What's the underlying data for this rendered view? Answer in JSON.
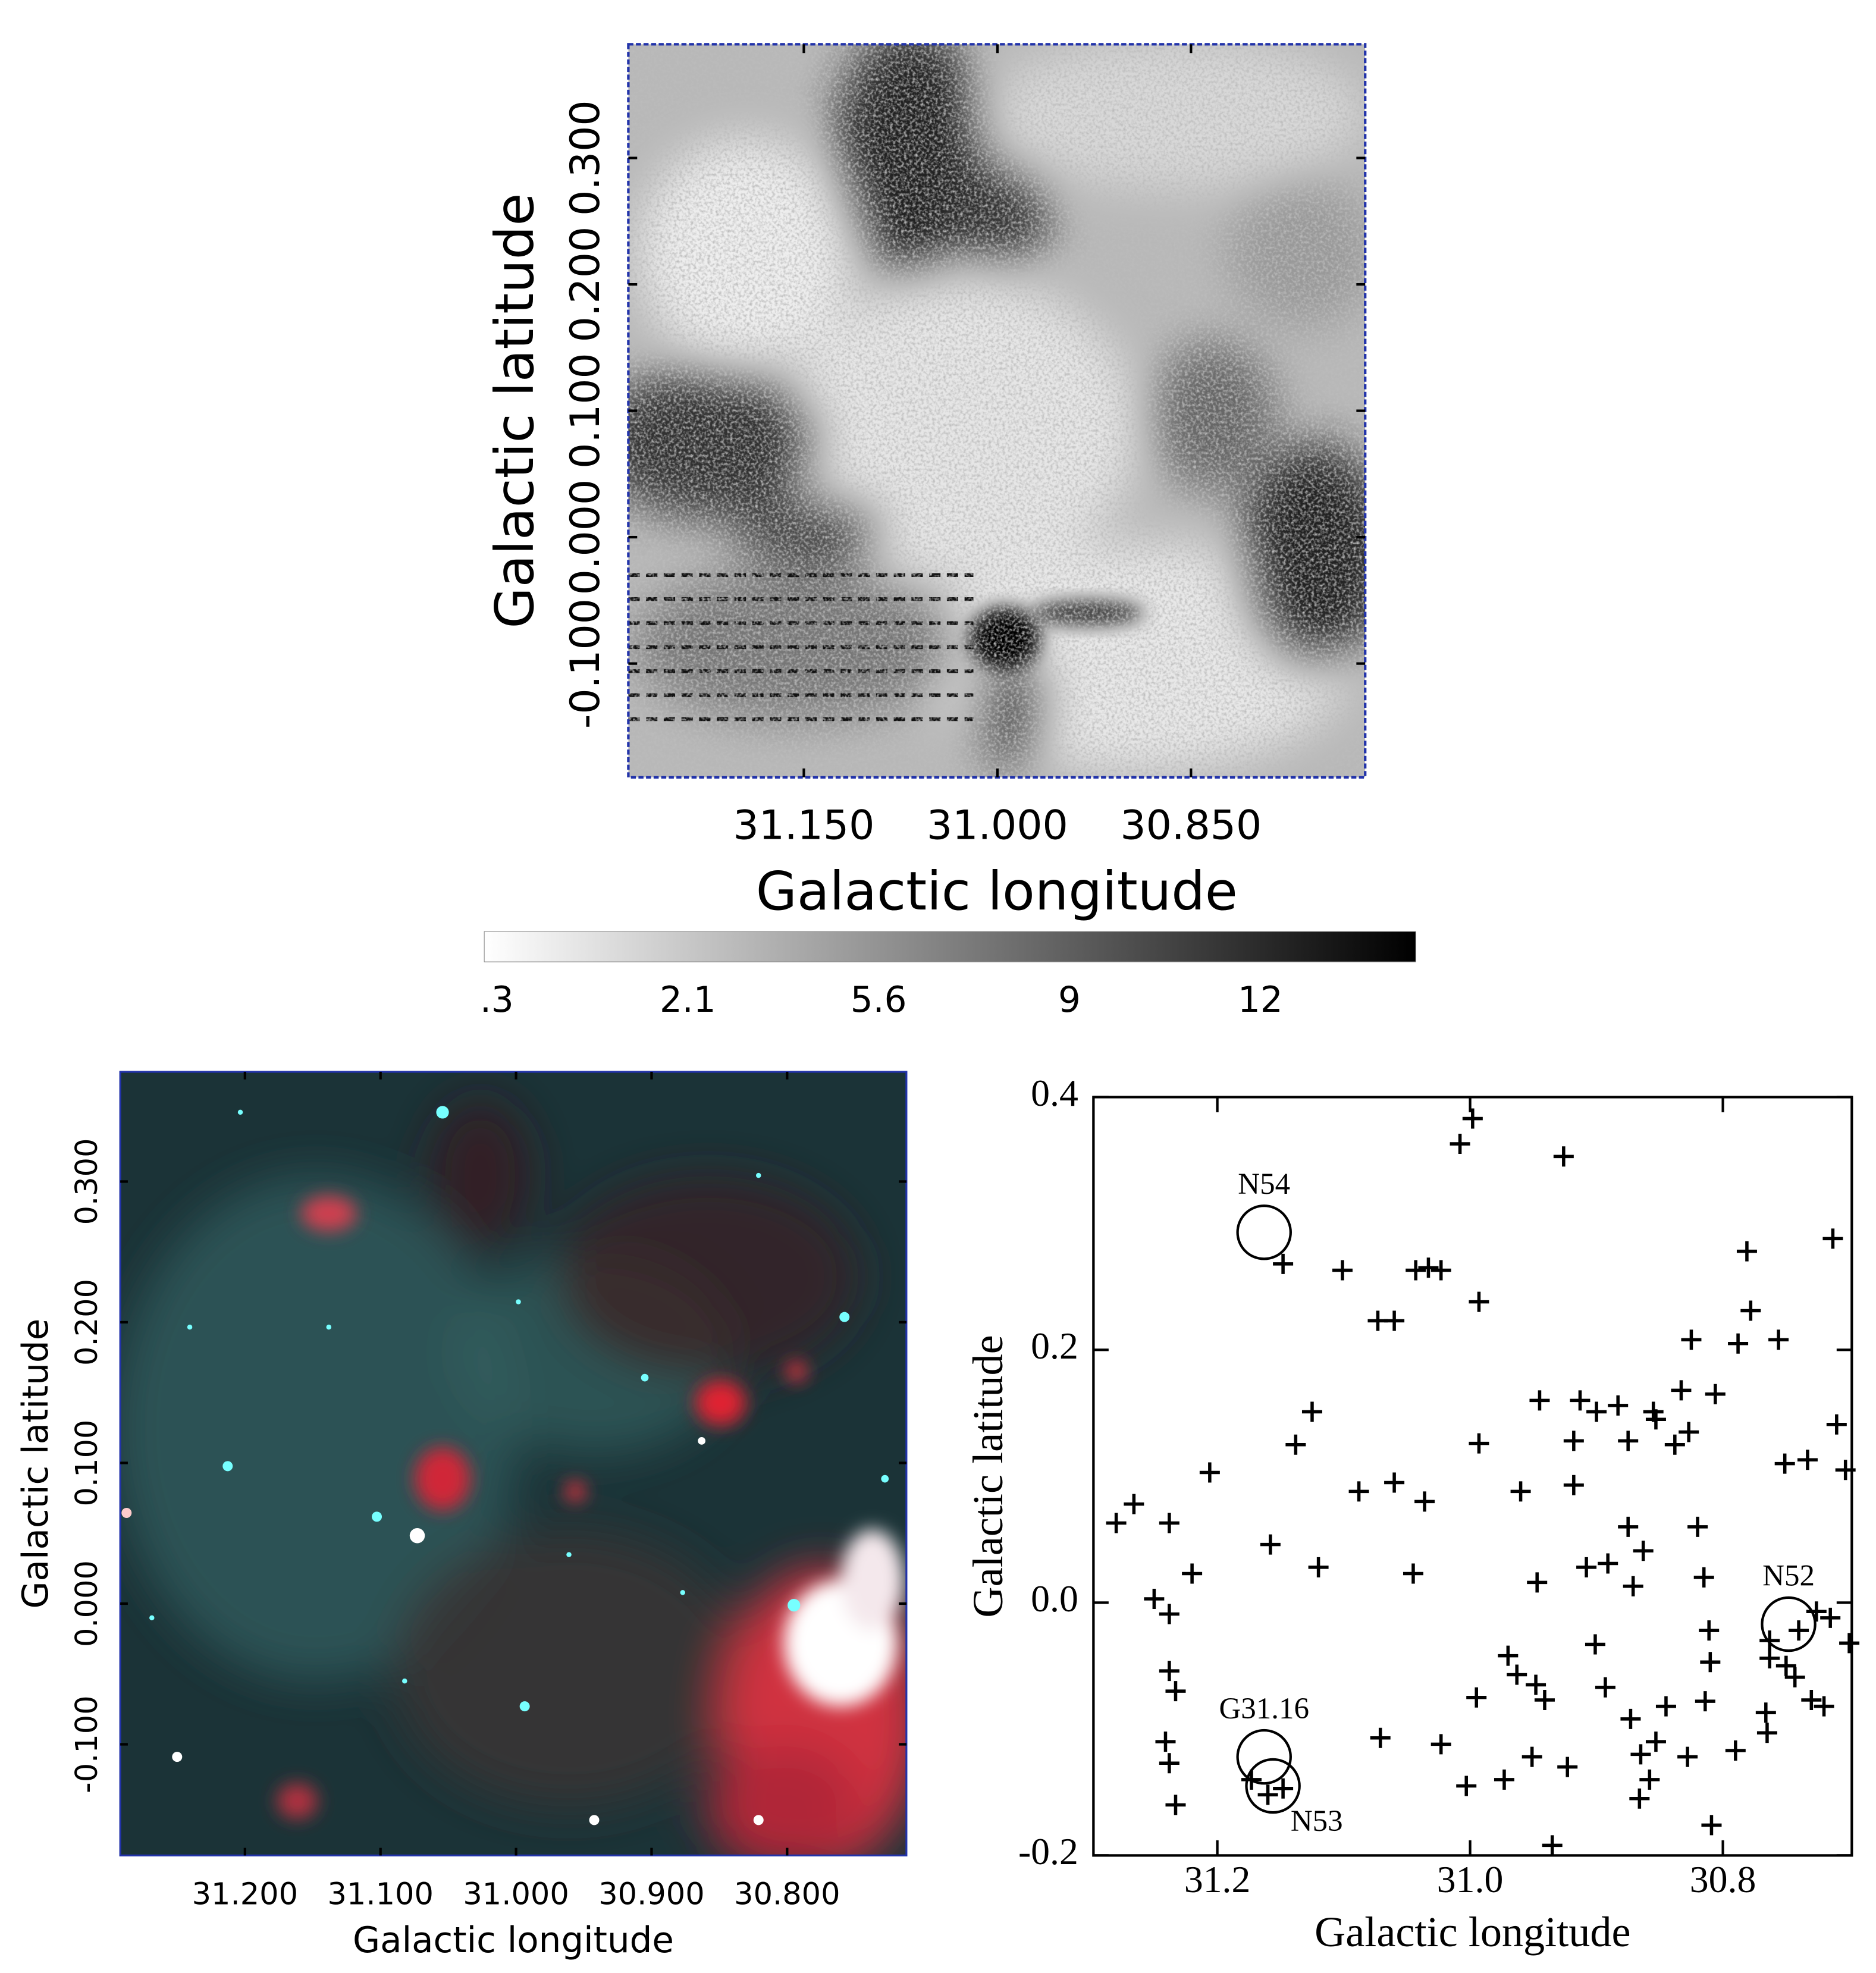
{
  "chart_data": [
    {
      "type": "image",
      "x_label": "Galactic longitude",
      "y_label": "Galactic latitude",
      "xlim": [
        31.286,
        30.715
      ],
      "ylim": [
        -0.19,
        0.39
      ],
      "xticks": [
        {
          "value": 31.15,
          "label": "31.150"
        },
        {
          "value": 31.0,
          "label": "31.000"
        },
        {
          "value": 30.85,
          "label": "30.850"
        }
      ],
      "yticks": [
        {
          "value": -0.1,
          "label": "-0.100"
        },
        {
          "value": 0.0,
          "label": "0.000"
        },
        {
          "value": 0.1,
          "label": "0.100"
        },
        {
          "value": 0.2,
          "label": "0.200"
        },
        {
          "value": 0.3,
          "label": "0.300"
        }
      ],
      "colormap": [
        "#ffffff",
        "#000000"
      ],
      "colorbar_ticks": [
        {
          "value": 0.3,
          "label": ".3"
        },
        2.1,
        5.6,
        9,
        12
      ]
    },
    {
      "type": "image",
      "x_label": "Galactic longitude",
      "y_label": "Galactic latitude",
      "xlim": [
        31.292,
        30.712
      ],
      "ylim": [
        -0.179,
        0.378
      ],
      "xticks": [
        {
          "value": 31.2,
          "label": "31.200"
        },
        {
          "value": 31.1,
          "label": "31.100"
        },
        {
          "value": 31.0,
          "label": "31.000"
        },
        {
          "value": 30.9,
          "label": "30.900"
        },
        {
          "value": 30.8,
          "label": "30.800"
        }
      ],
      "yticks": [
        {
          "value": -0.1,
          "label": "-0.100"
        },
        {
          "value": 0.0,
          "label": "0.000"
        },
        {
          "value": 0.1,
          "label": "0.100"
        },
        {
          "value": 0.2,
          "label": "0.200"
        },
        {
          "value": 0.3,
          "label": "0.300"
        }
      ]
    },
    {
      "type": "scatter",
      "x_label": "Galactic longitude",
      "y_label": "Galactic latitude",
      "xlim": [
        31.298,
        30.698
      ],
      "ylim": [
        -0.2,
        0.4
      ],
      "xticks": [
        {
          "value": 31.2,
          "label": "31.2"
        },
        {
          "value": 31.0,
          "label": "31.0"
        },
        {
          "value": 30.8,
          "label": "30.8"
        }
      ],
      "yticks": [
        {
          "value": -0.2,
          "label": "-0.2"
        },
        {
          "value": 0.0,
          "label": "0.0"
        },
        {
          "value": 0.2,
          "label": "0.2"
        },
        {
          "value": 0.4,
          "label": "0.4"
        }
      ],
      "marker": "+",
      "color": "#000000",
      "x": [
        30.998,
        31.008,
        30.926,
        30.713,
        30.781,
        31.148,
        31.101,
        31.043,
        31.033,
        31.023,
        30.993,
        30.778,
        31.073,
        31.06,
        30.825,
        30.788,
        30.756,
        30.833,
        30.806,
        30.945,
        30.913,
        30.9,
        30.883,
        30.855,
        30.853,
        31.125,
        30.71,
        30.827,
        30.918,
        30.875,
        31.138,
        30.993,
        30.838,
        30.733,
        30.751,
        30.703,
        31.206,
        30.918,
        31.06,
        31.088,
        30.96,
        31.036,
        31.266,
        31.28,
        31.238,
        30.875,
        30.82,
        30.863,
        31.158,
        31.12,
        31.045,
        31.22,
        30.908,
        30.891,
        30.815,
        30.871,
        30.947,
        31.25,
        31.238,
        30.726,
        30.715,
        30.74,
        30.811,
        30.763,
        30.7,
        30.901,
        30.81,
        30.763,
        30.75,
        30.97,
        30.963,
        31.238,
        30.743,
        30.948,
        31.233,
        30.893,
        30.995,
        30.941,
        30.814,
        30.73,
        30.72,
        30.845,
        30.766,
        30.873,
        30.765,
        31.071,
        30.853,
        31.241,
        31.023,
        30.79,
        30.865,
        30.951,
        30.828,
        31.238,
        30.923,
        30.858,
        30.973,
        31.173,
        31.003,
        31.148,
        31.16,
        30.866,
        31.233,
        30.809,
        30.935
      ],
      "values": [
        0.383,
        0.363,
        0.353,
        0.288,
        0.278,
        0.268,
        0.263,
        0.263,
        0.265,
        0.263,
        0.238,
        0.231,
        0.223,
        0.223,
        0.208,
        0.205,
        0.208,
        0.168,
        0.165,
        0.16,
        0.16,
        0.151,
        0.156,
        0.151,
        0.145,
        0.151,
        0.141,
        0.135,
        0.128,
        0.128,
        0.125,
        0.126,
        0.125,
        0.113,
        0.11,
        0.105,
        0.103,
        0.093,
        0.095,
        0.088,
        0.088,
        0.08,
        0.078,
        0.063,
        0.063,
        0.06,
        0.06,
        0.041,
        0.046,
        0.028,
        0.023,
        0.023,
        0.028,
        0.031,
        0.02,
        0.013,
        0.016,
        0.003,
        -0.009,
        -0.007,
        -0.012,
        -0.022,
        -0.022,
        -0.03,
        -0.032,
        -0.033,
        -0.047,
        -0.044,
        -0.05,
        -0.042,
        -0.057,
        -0.054,
        -0.059,
        -0.065,
        -0.07,
        -0.067,
        -0.075,
        -0.077,
        -0.078,
        -0.077,
        -0.082,
        -0.082,
        -0.087,
        -0.092,
        -0.103,
        -0.107,
        -0.11,
        -0.11,
        -0.112,
        -0.117,
        -0.12,
        -0.122,
        -0.122,
        -0.127,
        -0.13,
        -0.14,
        -0.14,
        -0.14,
        -0.145,
        -0.147,
        -0.152,
        -0.155,
        -0.16,
        -0.176,
        -0.192
      ],
      "circles": [
        {
          "label": "N54",
          "x": 31.163,
          "y": 0.293,
          "r": 0.021
        },
        {
          "label": "N52",
          "x": 30.748,
          "y": -0.017,
          "r": 0.021
        },
        {
          "label": "G31.16",
          "x": 31.163,
          "y": -0.122,
          "r": 0.021
        },
        {
          "label": "N53",
          "x": 31.156,
          "y": -0.145,
          "r": 0.021
        }
      ]
    }
  ]
}
